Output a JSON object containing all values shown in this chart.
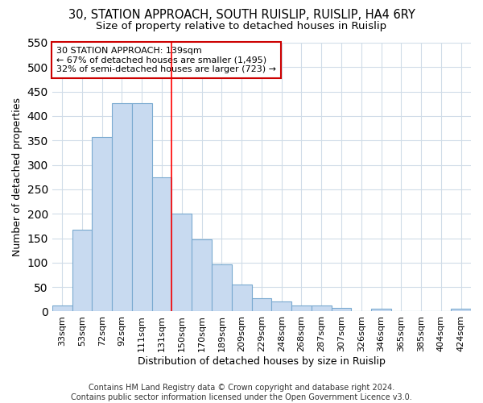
{
  "title": "30, STATION APPROACH, SOUTH RUISLIP, RUISLIP, HA4 6RY",
  "subtitle": "Size of property relative to detached houses in Ruislip",
  "xlabel": "Distribution of detached houses by size in Ruislip",
  "ylabel": "Number of detached properties",
  "categories": [
    "33sqm",
    "53sqm",
    "72sqm",
    "92sqm",
    "111sqm",
    "131sqm",
    "150sqm",
    "170sqm",
    "189sqm",
    "209sqm",
    "229sqm",
    "248sqm",
    "268sqm",
    "287sqm",
    "307sqm",
    "326sqm",
    "346sqm",
    "365sqm",
    "385sqm",
    "404sqm",
    "424sqm"
  ],
  "values": [
    13,
    168,
    357,
    427,
    427,
    275,
    200,
    148,
    96,
    55,
    27,
    20,
    12,
    12,
    8,
    0,
    6,
    0,
    0,
    0,
    5
  ],
  "bar_color": "#c8daf0",
  "bar_edge_color": "#7aaad0",
  "annotation_text": "30 STATION APPROACH: 139sqm\n← 67% of detached houses are smaller (1,495)\n32% of semi-detached houses are larger (723) →",
  "annotation_box_color": "white",
  "annotation_box_edge_color": "#cc0000",
  "redline_x": 5.5,
  "ylim": [
    0,
    550
  ],
  "yticks": [
    0,
    50,
    100,
    150,
    200,
    250,
    300,
    350,
    400,
    450,
    500,
    550
  ],
  "footer_line1": "Contains HM Land Registry data © Crown copyright and database right 2024.",
  "footer_line2": "Contains public sector information licensed under the Open Government Licence v3.0.",
  "background_color": "#ffffff",
  "grid_color": "#d0dce8",
  "title_fontsize": 10.5,
  "subtitle_fontsize": 9.5,
  "xlabel_fontsize": 9,
  "ylabel_fontsize": 9,
  "tick_fontsize": 8,
  "footer_fontsize": 7
}
